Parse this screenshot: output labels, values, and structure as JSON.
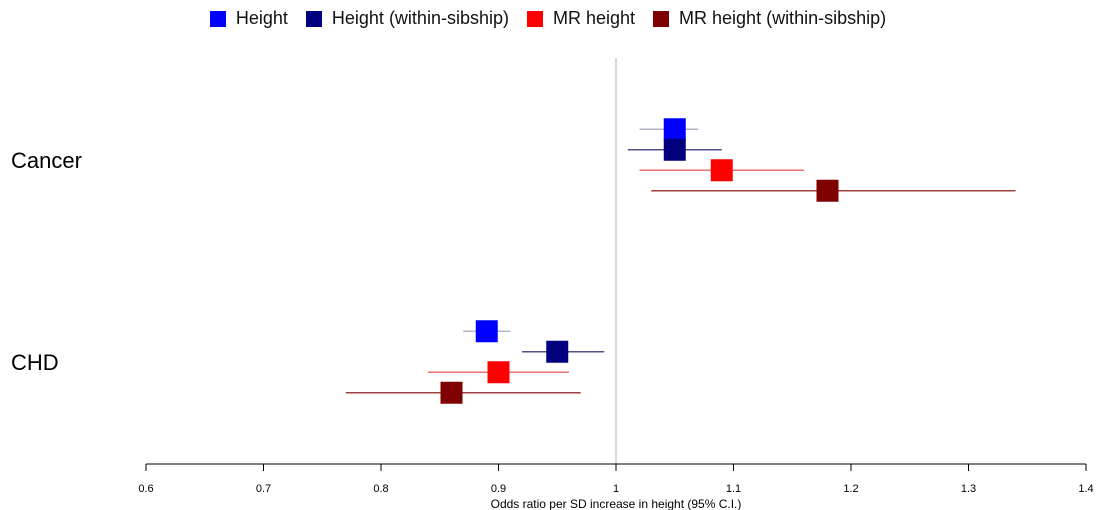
{
  "chart_data": {
    "type": "forest",
    "xlabel": "Odds ratio per SD increase in height (95% C.I.)",
    "xlim": [
      0.6,
      1.4
    ],
    "reference_line": 1.0,
    "ticks": [
      0.6,
      0.7,
      0.8,
      0.9,
      1,
      1.1,
      1.2,
      1.3,
      1.4
    ],
    "tick_labels": [
      "0.6",
      "0.7",
      "0.8",
      "0.9",
      "1",
      "1.1",
      "1.2",
      "1.3",
      "1.4"
    ],
    "legend": [
      {
        "name": "Height",
        "color": "#0000ff"
      },
      {
        "name": "Height (within-sibship)",
        "color": "#00007f"
      },
      {
        "name": "MR height",
        "color": "#ff0000"
      },
      {
        "name": "MR height (within-sibship)",
        "color": "#7f0000"
      }
    ],
    "groups": [
      {
        "label": "Cancer",
        "estimates": [
          {
            "series": "Height",
            "or": 1.05,
            "lo": 1.02,
            "hi": 1.07,
            "ci_color": "#b4b4c8"
          },
          {
            "series": "Height (within-sibship)",
            "or": 1.05,
            "lo": 1.01,
            "hi": 1.09,
            "ci_color": "#50508c"
          },
          {
            "series": "MR height",
            "or": 1.09,
            "lo": 1.02,
            "hi": 1.16,
            "ci_color": "#ee6f6f"
          },
          {
            "series": "MR height (within-sibship)",
            "or": 1.18,
            "lo": 1.03,
            "hi": 1.34,
            "ci_color": "#a04040"
          }
        ]
      },
      {
        "label": "CHD",
        "estimates": [
          {
            "series": "Height",
            "or": 0.89,
            "lo": 0.87,
            "hi": 0.91,
            "ci_color": "#b4b4c8"
          },
          {
            "series": "Height (within-sibship)",
            "or": 0.95,
            "lo": 0.92,
            "hi": 0.99,
            "ci_color": "#50508c"
          },
          {
            "series": "MR height",
            "or": 0.9,
            "lo": 0.84,
            "hi": 0.96,
            "ci_color": "#ee6f6f"
          },
          {
            "series": "MR height (within-sibship)",
            "or": 0.86,
            "lo": 0.77,
            "hi": 0.97,
            "ci_color": "#a04040"
          }
        ]
      }
    ]
  }
}
